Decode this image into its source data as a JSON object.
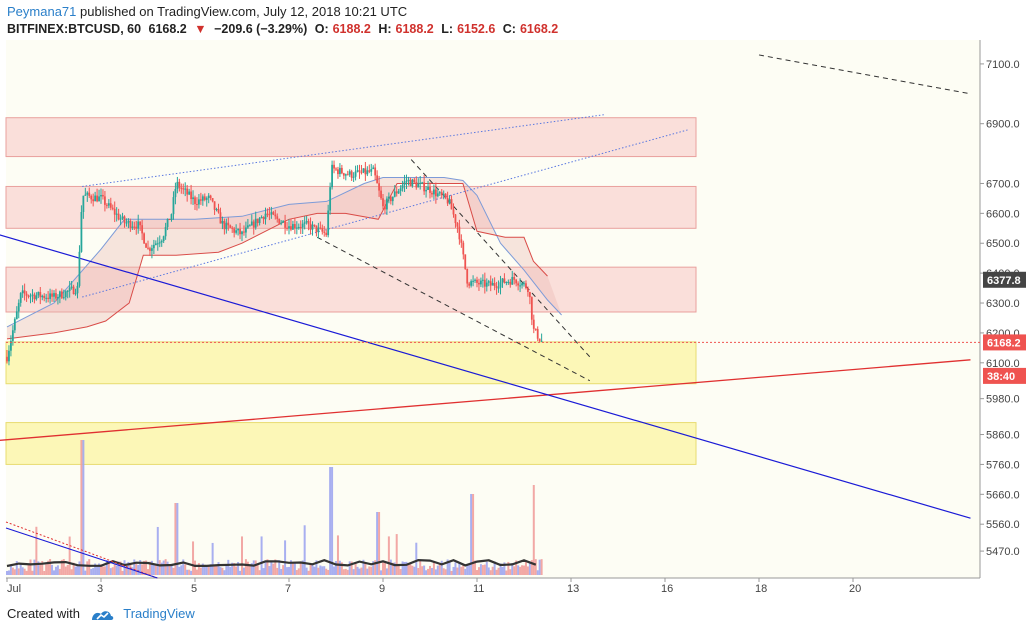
{
  "header": {
    "user": "Peymana71",
    "published": "published on TradingView.com, July 12, 2018 10:21 UTC",
    "symbol": "BITFINEX:BTCUSD, 60",
    "last": "6168.2",
    "change_arrow": "▼",
    "change": "−209.6 (−3.29%)",
    "o_label": "O:",
    "o_val": "6188.2",
    "h_label": "H:",
    "h_val": "6188.2",
    "l_label": "L:",
    "l_val": "6152.6",
    "c_label": "C:",
    "c_val": "6168.2"
  },
  "footer": {
    "created": "Created with",
    "brand": "TradingView"
  },
  "colors": {
    "up": "#26a69a",
    "down": "#ef5350",
    "red_line": "#e03030",
    "blue_line": "#1a1ad6",
    "zone_red": "#f7c6c4",
    "zone_yellow": "#fbf5a8",
    "bg": "#fdfdf4"
  },
  "chart_data": {
    "type": "candlestick",
    "ylim": [
      5380,
      7180
    ],
    "y_ticks": [
      "7100.0",
      "6900.0",
      "6700.0",
      "6600.0",
      "6500.0",
      "6400.0",
      "6300.0",
      "6200.0",
      "6100.0",
      "5980.0",
      "5860.0",
      "5760.0",
      "5660.0",
      "5560.0",
      "5470.0"
    ],
    "x_ticks": [
      "Jul",
      "3",
      "5",
      "7",
      "9",
      "11",
      "13",
      "16",
      "18",
      "20"
    ],
    "price_labels": {
      "marked": "6377.8",
      "current": "6168.2",
      "countdown": "38:40"
    },
    "close_path": [
      [
        1,
        6120
      ],
      [
        1.3,
        6330
      ],
      [
        2,
        6320
      ],
      [
        2.5,
        6350
      ],
      [
        2.6,
        6660
      ],
      [
        3,
        6650
      ],
      [
        3.3,
        6600
      ],
      [
        3.5,
        6570
      ],
      [
        3.8,
        6560
      ],
      [
        4,
        6480
      ],
      [
        4.3,
        6520
      ],
      [
        4.5,
        6600
      ],
      [
        4.6,
        6700
      ],
      [
        5,
        6640
      ],
      [
        5.3,
        6650
      ],
      [
        5.6,
        6560
      ],
      [
        6,
        6530
      ],
      [
        6.5,
        6600
      ],
      [
        7,
        6560
      ],
      [
        7.4,
        6560
      ],
      [
        7.8,
        6530
      ],
      [
        7.9,
        6750
      ],
      [
        8.3,
        6730
      ],
      [
        8.8,
        6740
      ],
      [
        9,
        6620
      ],
      [
        9.5,
        6710
      ],
      [
        10,
        6680
      ],
      [
        10.4,
        6640
      ],
      [
        10.6,
        6550
      ],
      [
        10.8,
        6370
      ],
      [
        11.3,
        6360
      ],
      [
        11.8,
        6380
      ],
      [
        12.1,
        6350
      ],
      [
        12.2,
        6210
      ],
      [
        12.4,
        6168
      ]
    ],
    "cloud_upper": [
      [
        1,
        6220
      ],
      [
        2,
        6300
      ],
      [
        3,
        6480
      ],
      [
        3.5,
        6580
      ],
      [
        4.3,
        6580
      ],
      [
        5,
        6580
      ],
      [
        6,
        6590
      ],
      [
        7,
        6630
      ],
      [
        7.8,
        6640
      ],
      [
        8.6,
        6700
      ],
      [
        9,
        6720
      ],
      [
        9.6,
        6720
      ],
      [
        10.3,
        6720
      ],
      [
        10.7,
        6710
      ],
      [
        11,
        6660
      ],
      [
        11.5,
        6500
      ],
      [
        12,
        6410
      ],
      [
        12.5,
        6310
      ],
      [
        12.8,
        6260
      ]
    ],
    "cloud_lower": [
      [
        1,
        6180
      ],
      [
        2,
        6200
      ],
      [
        2.7,
        6220
      ],
      [
        3.1,
        6240
      ],
      [
        3.6,
        6300
      ],
      [
        3.9,
        6460
      ],
      [
        4.6,
        6460
      ],
      [
        5.5,
        6470
      ],
      [
        6,
        6500
      ],
      [
        7,
        6580
      ],
      [
        7.6,
        6600
      ],
      [
        8.2,
        6600
      ],
      [
        8.9,
        6580
      ],
      [
        9.3,
        6700
      ],
      [
        10,
        6700
      ],
      [
        10.7,
        6700
      ],
      [
        11,
        6540
      ],
      [
        11.6,
        6520
      ],
      [
        12,
        6520
      ],
      [
        12.2,
        6440
      ],
      [
        12.5,
        6390
      ]
    ],
    "zones": [
      {
        "type": "resistance",
        "from": 6790,
        "to": 6920
      },
      {
        "type": "resistance",
        "from": 6550,
        "to": 6690
      },
      {
        "type": "resistance",
        "from": 6270,
        "to": 6420
      },
      {
        "type": "support",
        "from": 6030,
        "to": 6170
      },
      {
        "type": "support",
        "from": 5760,
        "to": 5900
      }
    ],
    "trendlines": [
      {
        "name": "red",
        "from": [
          0.8,
          5840
        ],
        "to": [
          21.5,
          6110
        ]
      },
      {
        "name": "blue",
        "from": [
          0.8,
          6530
        ],
        "to": [
          21.5,
          5580
        ]
      },
      {
        "name": "dashed-top",
        "from": [
          17,
          7130
        ],
        "to": [
          21.5,
          7000
        ]
      },
      {
        "name": "dashed-1",
        "from": [
          9.6,
          6780
        ],
        "to": [
          13.4,
          6120
        ]
      },
      {
        "name": "dashed-2",
        "from": [
          7.6,
          6520
        ],
        "to": [
          13.4,
          6040
        ]
      },
      {
        "name": "channel-upper",
        "from": [
          2.6,
          6690
        ],
        "to": [
          13.7,
          6930
        ]
      },
      {
        "name": "channel-lower",
        "from": [
          2.6,
          6320
        ],
        "to": [
          15.5,
          6880
        ]
      }
    ],
    "volume_spikes": [
      [
        2.6,
        0.75
      ],
      [
        4.6,
        0.4
      ],
      [
        7.9,
        0.6
      ],
      [
        10.9,
        0.45
      ],
      [
        12.2,
        0.5
      ],
      [
        8.9,
        0.35
      ]
    ]
  }
}
